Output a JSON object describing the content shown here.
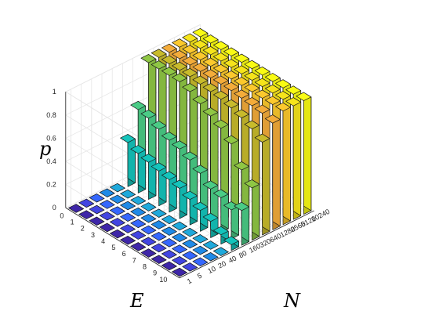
{
  "chart_data": {
    "type": "bar3d",
    "title": "",
    "zlabel": "p",
    "ylabel": "E",
    "xlabel": "N",
    "z_ticks": [
      "0",
      "0.2",
      "0.4",
      "0.6",
      "0.8",
      "1"
    ],
    "zlim": [
      0,
      1
    ],
    "grid": true,
    "colormap": "parula",
    "E_values": [
      0,
      1,
      2,
      3,
      4,
      5,
      6,
      7,
      8,
      9,
      10
    ],
    "N_values": [
      "1",
      "5",
      "10",
      "20",
      "40",
      "80",
      "160",
      "320",
      "640",
      "1280",
      "2560",
      "5120",
      "10240"
    ],
    "p_by_E": [
      [
        0,
        0,
        0,
        0,
        0,
        0.38,
        0.62,
        0.98,
        0.98,
        0.98,
        0.98,
        0.98,
        0.98
      ],
      [
        0,
        0,
        0,
        0,
        0,
        0.34,
        0.6,
        0.98,
        0.98,
        0.98,
        0.98,
        0.98,
        0.98
      ],
      [
        0,
        0,
        0,
        0,
        0,
        0.32,
        0.56,
        0.98,
        0.98,
        0.98,
        0.98,
        0.98,
        0.98
      ],
      [
        0,
        0,
        0,
        0,
        0,
        0.3,
        0.52,
        0.98,
        0.98,
        0.98,
        0.98,
        0.98,
        0.98
      ],
      [
        0,
        0,
        0,
        0,
        0,
        0.28,
        0.5,
        0.95,
        0.97,
        0.98,
        0.98,
        0.98,
        0.98
      ],
      [
        0,
        0,
        0,
        0,
        0,
        0.26,
        0.46,
        0.9,
        0.96,
        0.98,
        0.98,
        0.98,
        0.98
      ],
      [
        0,
        0,
        0,
        0,
        0,
        0.22,
        0.4,
        0.85,
        0.95,
        0.98,
        0.98,
        0.98,
        0.98
      ],
      [
        0,
        0,
        0,
        0,
        0,
        0.18,
        0.32,
        0.8,
        0.93,
        0.97,
        0.98,
        0.98,
        0.98
      ],
      [
        0,
        0,
        0,
        0,
        0,
        0.14,
        0.3,
        0.72,
        0.9,
        0.96,
        0.98,
        0.98,
        0.98
      ],
      [
        0,
        0,
        0,
        0,
        0,
        0.08,
        0.25,
        0.55,
        0.86,
        0.95,
        0.98,
        0.98,
        0.98
      ],
      [
        0,
        0,
        0,
        0,
        0,
        0.05,
        0.3,
        0.45,
        0.8,
        0.92,
        0.98,
        0.98,
        0.98
      ]
    ],
    "column_colors": [
      "#3e26a8",
      "#4245e1",
      "#3567fd",
      "#1f8ae7",
      "#1fa9db",
      "#14c4bb",
      "#4acc86",
      "#8fc744",
      "#c8bb2b",
      "#f4ac3a",
      "#fcc92d",
      "#f6e41b",
      "#f9fb14"
    ]
  }
}
